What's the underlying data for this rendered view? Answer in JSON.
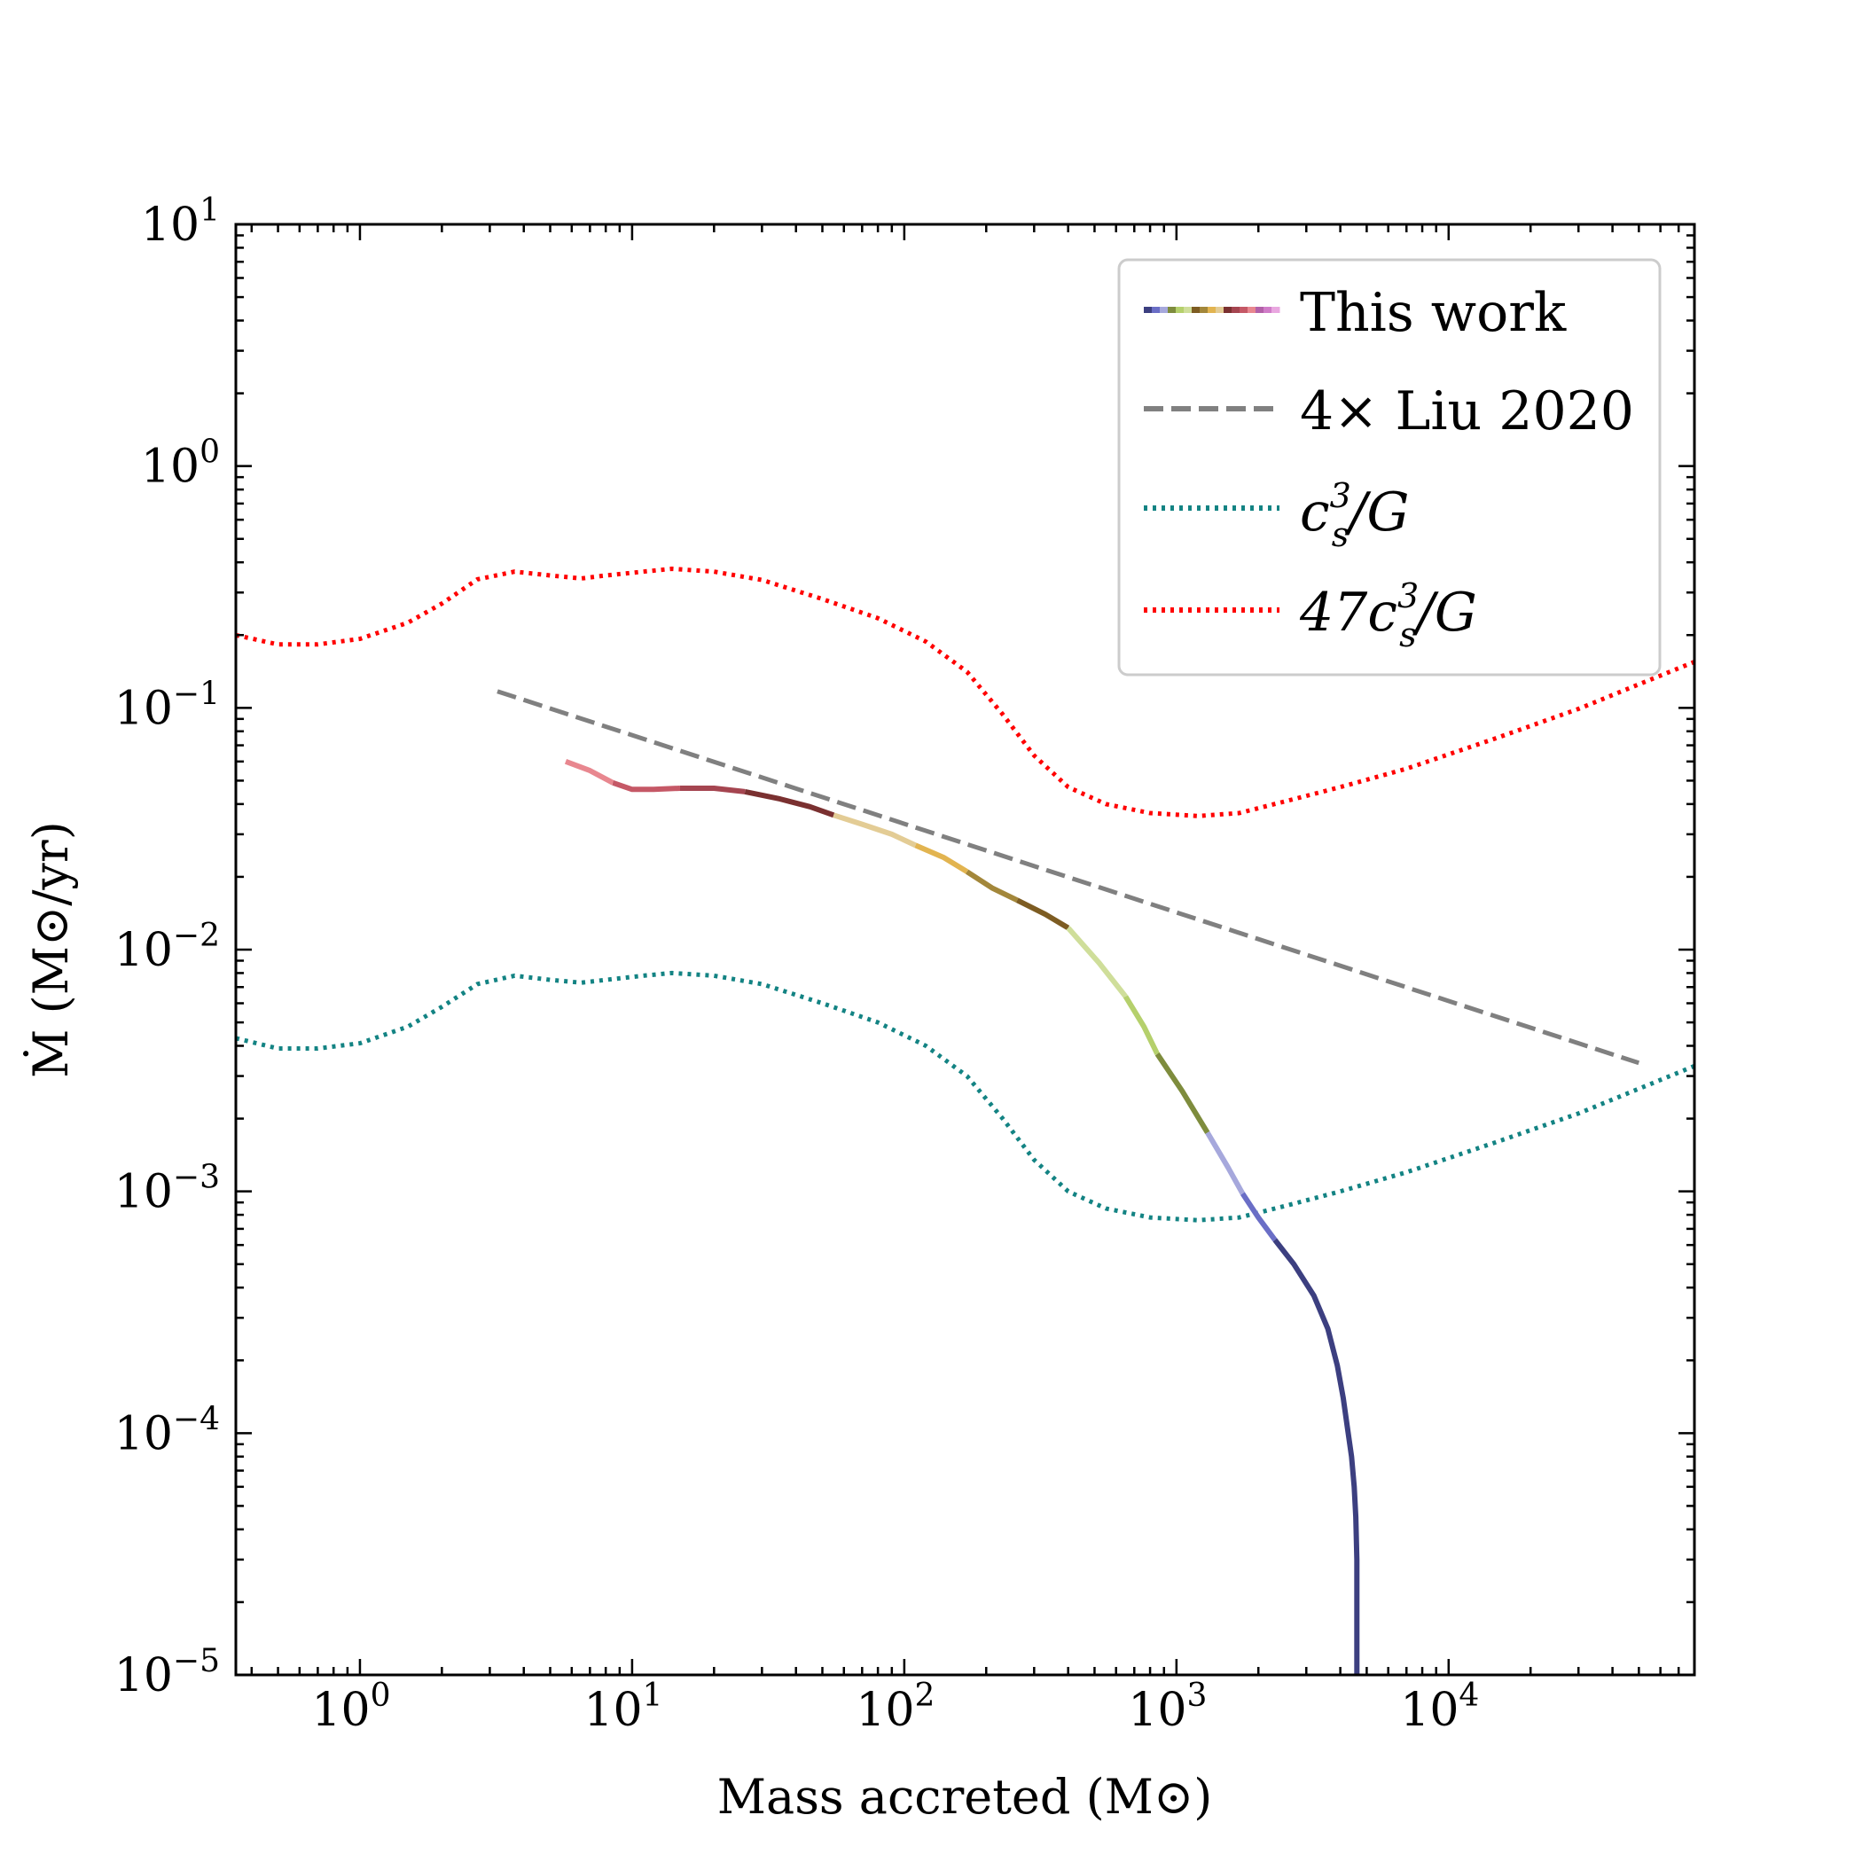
{
  "chart_data": {
    "type": "line",
    "xscale": "log",
    "yscale": "log",
    "xlim": [
      0.35,
      80000
    ],
    "ylim": [
      1e-05,
      10
    ],
    "xlabel": "Mass accreted (M⊙)",
    "ylabel": "Ṁ (M⊙/yr)",
    "x_ticks": [
      {
        "value": 1,
        "base": "10",
        "exp": "0"
      },
      {
        "value": 10,
        "base": "10",
        "exp": "1"
      },
      {
        "value": 100,
        "base": "10",
        "exp": "2"
      },
      {
        "value": 1000,
        "base": "10",
        "exp": "3"
      },
      {
        "value": 10000,
        "base": "10",
        "exp": "4"
      }
    ],
    "y_ticks": [
      {
        "value": 1e-05,
        "base": "10",
        "exp": "−5"
      },
      {
        "value": 0.0001,
        "base": "10",
        "exp": "−4"
      },
      {
        "value": 0.001,
        "base": "10",
        "exp": "−3"
      },
      {
        "value": 0.01,
        "base": "10",
        "exp": "−2"
      },
      {
        "value": 0.1,
        "base": "10",
        "exp": "−1"
      },
      {
        "value": 1,
        "base": "10",
        "exp": "0"
      },
      {
        "value": 10,
        "base": "10",
        "exp": "1"
      }
    ],
    "legend_position": "top-right",
    "series": [
      {
        "name": "This work",
        "style": "solid-multicolor",
        "segments": [
          {
            "color": "#e8878f",
            "x": [
              5.7,
              7,
              8.5
            ],
            "y": [
              0.06,
              0.055,
              0.049
            ]
          },
          {
            "color": "#c55866",
            "x": [
              8.5,
              10,
              12,
              15
            ],
            "y": [
              0.049,
              0.046,
              0.046,
              0.0465
            ]
          },
          {
            "color": "#a54550",
            "x": [
              15,
              20,
              26
            ],
            "y": [
              0.0465,
              0.0465,
              0.045
            ]
          },
          {
            "color": "#7a3030",
            "x": [
              26,
              35,
              45,
              55
            ],
            "y": [
              0.045,
              0.042,
              0.039,
              0.036
            ]
          },
          {
            "color": "#e3cc95",
            "x": [
              55,
              70,
              90,
              110
            ],
            "y": [
              0.036,
              0.033,
              0.03,
              0.027
            ]
          },
          {
            "color": "#e2b450",
            "x": [
              110,
              140,
              170
            ],
            "y": [
              0.027,
              0.024,
              0.021
            ]
          },
          {
            "color": "#a3873a",
            "x": [
              170,
              210,
              260
            ],
            "y": [
              0.021,
              0.018,
              0.016
            ]
          },
          {
            "color": "#7d5c22",
            "x": [
              260,
              330,
              400
            ],
            "y": [
              0.016,
              0.014,
              0.0123
            ]
          },
          {
            "color": "#cfde9a",
            "x": [
              400,
              520,
              650
            ],
            "y": [
              0.0123,
              0.0088,
              0.0064
            ]
          },
          {
            "color": "#b5d06c",
            "x": [
              650,
              760,
              850
            ],
            "y": [
              0.0064,
              0.0048,
              0.0037
            ]
          },
          {
            "color": "#7e8c3d",
            "x": [
              850,
              1050,
              1300
            ],
            "y": [
              0.0037,
              0.0026,
              0.00175
            ]
          },
          {
            "color": "#a6a8dc",
            "x": [
              1300,
              1550,
              1750
            ],
            "y": [
              0.00175,
              0.00125,
              0.00098
            ]
          },
          {
            "color": "#6a6ec6",
            "x": [
              1750,
              2000,
              2300
            ],
            "y": [
              0.00098,
              0.00078,
              0.00063
            ]
          },
          {
            "color": "#3c3f80",
            "x": [
              2300,
              2700,
              3200,
              3600,
              3900,
              4100,
              4250,
              4400,
              4500,
              4560,
              4600,
              4600
            ],
            "y": [
              0.00063,
              0.0005,
              0.00037,
              0.00027,
              0.00019,
              0.00014,
              0.000105,
              8e-05,
              6e-05,
              4.5e-05,
              3e-05,
              1e-05
            ]
          }
        ]
      },
      {
        "name": "4× Liu 2020",
        "color": "#808080",
        "style": "dashed",
        "x": [
          3.2,
          50000
        ],
        "y": [
          0.117,
          0.0034
        ]
      },
      {
        "name": "c_s^3/G",
        "color": "#138383",
        "style": "dotted",
        "x": [
          0.35,
          0.5,
          0.7,
          1,
          1.5,
          2,
          2.7,
          3.7,
          5,
          6.5,
          8,
          11,
          14,
          20,
          30,
          50,
          80,
          120,
          170,
          230,
          300,
          400,
          550,
          800,
          1200,
          1700,
          2500,
          4000,
          7000,
          15000,
          30000,
          80000
        ],
        "y": [
          0.0043,
          0.0039,
          0.0039,
          0.0041,
          0.0048,
          0.0058,
          0.0072,
          0.0078,
          0.0075,
          0.0073,
          0.0075,
          0.0078,
          0.008,
          0.0078,
          0.0072,
          0.006,
          0.005,
          0.004,
          0.003,
          0.002,
          0.00135,
          0.001,
          0.00085,
          0.00078,
          0.00076,
          0.00078,
          0.00087,
          0.001,
          0.0012,
          0.0016,
          0.0021,
          0.0033
        ]
      },
      {
        "name": "47c_s^3/G",
        "color": "#ff0000",
        "style": "dotted",
        "x": [
          0.35,
          0.5,
          0.7,
          1,
          1.5,
          2,
          2.7,
          3.7,
          5,
          6.5,
          8,
          11,
          14,
          20,
          30,
          50,
          80,
          120,
          170,
          230,
          300,
          400,
          550,
          800,
          1200,
          1700,
          2500,
          4000,
          7000,
          15000,
          30000,
          80000
        ],
        "y": [
          0.2,
          0.183,
          0.183,
          0.193,
          0.225,
          0.27,
          0.34,
          0.366,
          0.353,
          0.343,
          0.353,
          0.366,
          0.376,
          0.366,
          0.338,
          0.282,
          0.235,
          0.188,
          0.141,
          0.094,
          0.0635,
          0.047,
          0.04,
          0.0367,
          0.0357,
          0.0367,
          0.041,
          0.047,
          0.056,
          0.075,
          0.099,
          0.155
        ]
      }
    ],
    "legend": [
      {
        "label": "This work"
      },
      {
        "label": "4× Liu 2020"
      },
      {
        "label": "c",
        "sub": "s",
        "sup": "3",
        "suffix": "/G"
      },
      {
        "label": "47c",
        "sub": "s",
        "sup": "3",
        "suffix": "/G"
      }
    ],
    "legend_swatch_colors": [
      "#3c3f80",
      "#6a6ec6",
      "#a6a8dc",
      "#7e8c3d",
      "#b5d06c",
      "#cfde9a",
      "#7d5c22",
      "#a3873a",
      "#e2b450",
      "#e3cc95",
      "#7a3030",
      "#a54550",
      "#c55866",
      "#e8878f",
      "#b260a8",
      "#d07cc8",
      "#e9a7e0"
    ]
  }
}
